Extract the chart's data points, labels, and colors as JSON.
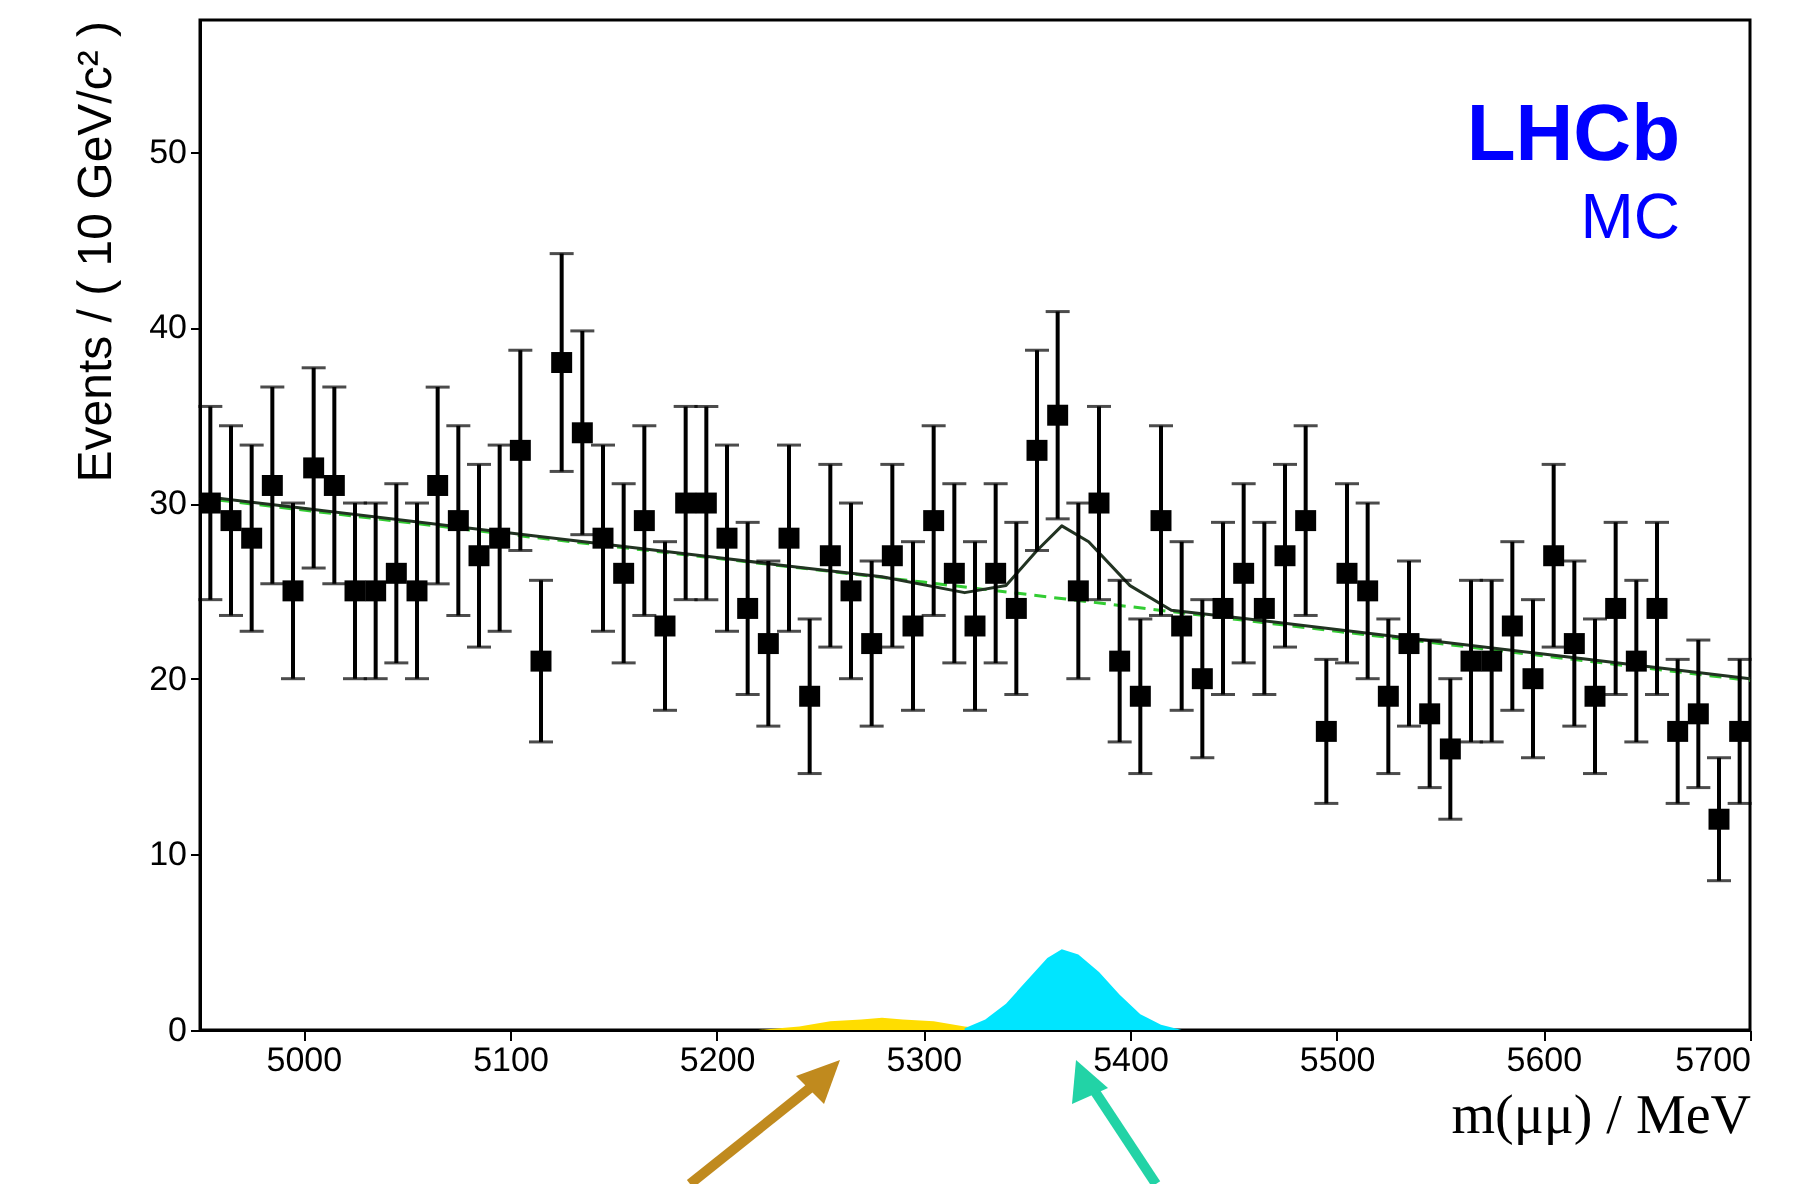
{
  "chart_data": {
    "type": "scatter",
    "xlabel": "m(μμ) / MeV",
    "ylabel": "Events / ( 10 GeV/c² )",
    "annotations": [
      "LHCb",
      "MC"
    ],
    "xlim": [
      4950,
      5700
    ],
    "xticks": [
      5000,
      5100,
      5200,
      5300,
      5400,
      5500,
      5600,
      5700
    ],
    "ylim": [
      0,
      57.5
    ],
    "yticks": [
      0,
      10,
      20,
      30,
      40,
      50
    ],
    "grid": false,
    "series": [
      {
        "type": "area",
        "color": "#ffdd00",
        "x": [
          5220,
          5240,
          5255,
          5270,
          5280,
          5290,
          5305,
          5320,
          5335
        ],
        "values": [
          0,
          0.2,
          0.5,
          0.6,
          0.7,
          0.6,
          0.5,
          0.2,
          0
        ]
      },
      {
        "type": "area",
        "color": "#00e5ff",
        "x": [
          5320,
          5330,
          5340,
          5350,
          5360,
          5367,
          5375,
          5385,
          5395,
          5405,
          5415,
          5425
        ],
        "values": [
          0.1,
          0.6,
          1.5,
          2.8,
          4.1,
          4.6,
          4.3,
          3.3,
          2,
          0.9,
          0.3,
          0
        ]
      },
      {
        "type": "line",
        "color": "#33cc33",
        "line_style": "dashed",
        "x": [
          4950,
          5100,
          5300,
          5500,
          5700
        ],
        "values": [
          30.3,
          28.2,
          25.5,
          22.7,
          19.9
        ]
      },
      {
        "type": "line",
        "color": "#223322",
        "line_style": "solid",
        "x": [
          4950,
          5000,
          5100,
          5200,
          5250,
          5280,
          5320,
          5340,
          5355,
          5367,
          5380,
          5400,
          5420,
          5450,
          5500,
          5600,
          5700
        ],
        "values": [
          30.4,
          29.7,
          28.3,
          26.9,
          26.2,
          25.8,
          24.9,
          25.3,
          27.3,
          28.7,
          27.8,
          25.3,
          23.9,
          23.5,
          22.8,
          21.4,
          20
        ]
      },
      {
        "color": "#000000",
        "marker": "square",
        "x": [
          4955,
          4965,
          4975,
          4985,
          4995,
          5005,
          5015,
          5025,
          5035,
          5045,
          5055,
          5065,
          5075,
          5085,
          5095,
          5105,
          5115,
          5125,
          5135,
          5145,
          5155,
          5165,
          5175,
          5185,
          5195,
          5205,
          5215,
          5225,
          5235,
          5245,
          5255,
          5265,
          5275,
          5285,
          5295,
          5305,
          5315,
          5325,
          5335,
          5345,
          5355,
          5365,
          5375,
          5385,
          5395,
          5405,
          5415,
          5425,
          5435,
          5445,
          5455,
          5465,
          5475,
          5485,
          5495,
          5505,
          5515,
          5525,
          5535,
          5545,
          5555,
          5565,
          5575,
          5585,
          5595,
          5605,
          5615,
          5625,
          5635,
          5645,
          5655,
          5665,
          5675,
          5685,
          5695
        ],
        "values": [
          30,
          29,
          28,
          31,
          25,
          32,
          31,
          25,
          25,
          26,
          25,
          31,
          29,
          27,
          28,
          33,
          21,
          38,
          34,
          28,
          26,
          29,
          23,
          30,
          30,
          28,
          24,
          22,
          28,
          19,
          27,
          25,
          22,
          27,
          23,
          29,
          26,
          23,
          26,
          24,
          33,
          35,
          25,
          30,
          21,
          19,
          29,
          23,
          20,
          24,
          26,
          24,
          27,
          29,
          17,
          26,
          25,
          19,
          22,
          18,
          16,
          21,
          21,
          23,
          20,
          27,
          22,
          19,
          24,
          21,
          24,
          17,
          18,
          12,
          17
        ],
        "errors": [
          5.5,
          5.4,
          5.3,
          5.6,
          5,
          5.7,
          5.6,
          5,
          5,
          5.1,
          5,
          5.6,
          5.4,
          5.2,
          5.3,
          5.7,
          4.6,
          6.2,
          5.8,
          5.3,
          5.1,
          5.4,
          4.8,
          5.5,
          5.5,
          5.3,
          4.9,
          4.7,
          5.3,
          4.4,
          5.2,
          5,
          4.7,
          5.2,
          4.8,
          5.4,
          5.1,
          4.8,
          5.1,
          4.9,
          5.7,
          5.9,
          5,
          5.5,
          4.6,
          4.4,
          5.4,
          4.8,
          4.5,
          4.9,
          5.1,
          4.9,
          5.2,
          5.4,
          4.1,
          5.1,
          5,
          4.4,
          4.7,
          4.2,
          4,
          4.6,
          4.6,
          4.8,
          4.5,
          5.2,
          4.7,
          4.4,
          4.9,
          4.6,
          4.9,
          4.1,
          4.2,
          3.5,
          4.1
        ]
      }
    ]
  }
}
